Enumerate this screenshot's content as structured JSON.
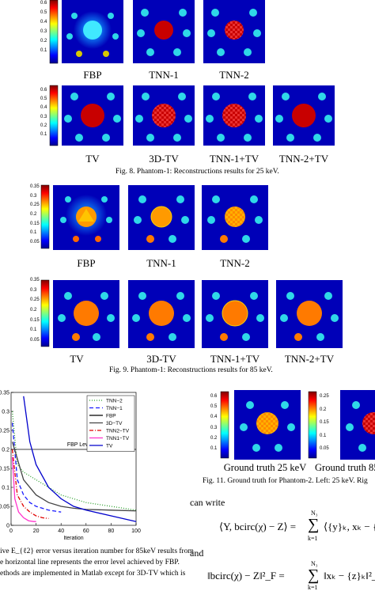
{
  "fig8": {
    "row1_labels": [
      "FBP",
      "TNN-1",
      "TNN-2"
    ],
    "row2_labels": [
      "TV",
      "3D-TV",
      "TNN-1+TV",
      "TNN-2+TV"
    ],
    "colorbar_ticks": [
      "0.6",
      "0.5",
      "0.4",
      "0.3",
      "0.2",
      "0.1"
    ],
    "caption": "Fig. 8.   Phantom-1: Reconstructions results for 25 keV."
  },
  "fig9": {
    "row1_labels": [
      "FBP",
      "TNN-1",
      "TNN-2"
    ],
    "row2_labels": [
      "TV",
      "3D-TV",
      "TNN-1+TV",
      "TNN-2+TV"
    ],
    "colorbar_ticks": [
      "0.35",
      "0.3",
      "0.25",
      "0.2",
      "0.15",
      "0.1",
      "0.05"
    ],
    "caption": "Fig. 9.   Phantom-1: Reconstructions results for 85 keV."
  },
  "chart_data": {
    "type": "line",
    "xlabel": "Iteration",
    "ylabel": "",
    "xlim": [
      0,
      100
    ],
    "ylim": [
      0,
      0.35
    ],
    "x_ticks": [
      "0",
      "20",
      "40",
      "60",
      "80",
      "100"
    ],
    "y_ticks": [
      "0",
      "0.05",
      "0.1",
      "0.15",
      "0.2",
      "0.25",
      "0.3",
      "0.35"
    ],
    "annotation": "FBP Level",
    "legend": "top-right",
    "series": [
      {
        "name": "TNN−2",
        "color": "#2ca02c",
        "style": "dotted",
        "x": [
          1,
          5,
          10,
          20,
          30,
          40,
          60,
          80,
          100
        ],
        "y": [
          0.3,
          0.16,
          0.14,
          0.12,
          0.1,
          0.08,
          0.06,
          0.05,
          0.04
        ]
      },
      {
        "name": "TNN−1",
        "color": "#1a1aff",
        "style": "dashed",
        "x": [
          1,
          5,
          10,
          15,
          20,
          30,
          40
        ],
        "y": [
          0.27,
          0.12,
          0.08,
          0.06,
          0.05,
          0.04,
          0.035
        ]
      },
      {
        "name": "FBP",
        "color": "#000000",
        "style": "solid",
        "x": [
          0,
          100
        ],
        "y": [
          0.2,
          0.2
        ]
      },
      {
        "name": "3D−TV",
        "color": "#444444",
        "style": "solid",
        "x": [
          1,
          10,
          20,
          30,
          40,
          50,
          60,
          80,
          100
        ],
        "y": [
          0.22,
          0.12,
          0.08,
          0.06,
          0.05,
          0.045,
          0.042,
          0.04,
          0.038
        ]
      },
      {
        "name": "TNN2−TV",
        "color": "#e00000",
        "style": "dashdot",
        "x": [
          1,
          5,
          10,
          15,
          20,
          25,
          30
        ],
        "y": [
          0.2,
          0.08,
          0.05,
          0.035,
          0.025,
          0.02,
          0.018
        ]
      },
      {
        "name": "TNN1−TV",
        "color": "#ff33cc",
        "style": "solid",
        "x": [
          1,
          3,
          6,
          10,
          14,
          18,
          20
        ],
        "y": [
          0.18,
          0.07,
          0.035,
          0.02,
          0.012,
          0.01,
          0.01
        ]
      },
      {
        "name": "TV",
        "color": "#0000cc",
        "style": "solid",
        "x": [
          10,
          15,
          20,
          30,
          40,
          50,
          60,
          80,
          100
        ],
        "y": [
          0.34,
          0.22,
          0.16,
          0.1,
          0.07,
          0.05,
          0.04,
          0.025,
          0.01
        ]
      }
    ]
  },
  "left_caption": {
    "lines": [
      "ive E_{ℓ2} error versus iteration number for 85keV results from",
      "e horizontal line represents the error level achieved by FBP.",
      "ethods are implemented in Matlab except for 3D-TV which is"
    ]
  },
  "fig11": {
    "labels": [
      "Ground truth 25 keV",
      "Ground truth 85"
    ],
    "colorbar_ticks_left": [
      "0.6",
      "0.5",
      "0.4",
      "0.3",
      "0.2",
      "0.1"
    ],
    "colorbar_ticks_right": [
      "0.25",
      "0.2",
      "0.15",
      "0.1",
      "0.05"
    ],
    "caption": "Fig. 11.   Ground truth for Phantom-2. Left: 25 keV. Rig"
  },
  "text": {
    "can_write": "can write",
    "and": "and"
  },
  "math": {
    "eq1_lhs": "⟨Y, bcirc(χ) − Z⟩ =",
    "eq1_sum_top": "N₃",
    "eq1_sum_bottom": "k=1",
    "eq1_rhs": "⟨{y}ₖ, xₖ − {z",
    "eq2_lhs": "‖bcirc(χ) − Z‖²_F =",
    "eq2_sum_top": "N₃",
    "eq2_sum_bottom": "k=1",
    "eq2_rhs": "‖xₖ − {z}ₖ‖²_F"
  },
  "colors": {
    "jet_dark_blue": "#00008f",
    "background_blue": "#0000b8",
    "cyan": "#2fd8e8",
    "red": "#c80000",
    "orange": "#ff7a00"
  }
}
